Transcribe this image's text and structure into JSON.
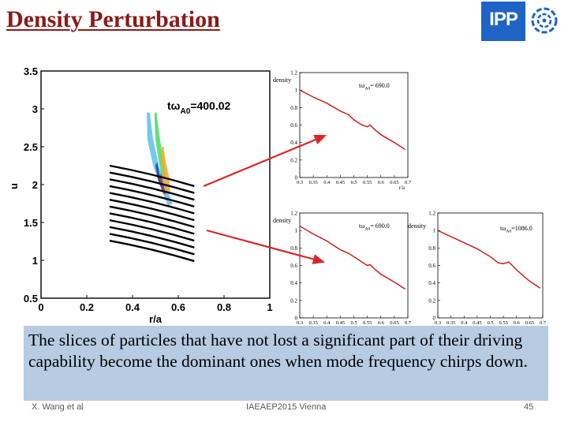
{
  "slide": {
    "title": "Density Perturbation",
    "logo_text": "IPP",
    "caption": "The slices of particles that have not lost a significant part of their driving capability become the dominant ones when mode frequency chirps down.",
    "footer": {
      "author": "X. Wang et al",
      "conference": "IAEAEP2015 Vienna",
      "page": "45"
    },
    "arrow_color": "#d62828"
  },
  "chart_data": [
    {
      "type": "contour",
      "annotation": "tω",
      "annotation_sub": "A0",
      "annotation_value": "=400.02",
      "xlabel": "r/a",
      "ylabel": "u",
      "xlim": [
        0,
        1
      ],
      "ylim": [
        0.5,
        3.5
      ],
      "xticks": [
        "0",
        "0.2",
        "0.4",
        "0.6",
        "0.8",
        "1"
      ],
      "yticks": [
        "0.5",
        "1",
        "1.5",
        "2",
        "2.5",
        "3",
        "3.5"
      ],
      "slices": {
        "count": 12,
        "r_start": 0.3,
        "r_end": 0.67,
        "u_start": [
          2.25,
          2.16,
          2.07,
          1.98,
          1.89,
          1.8,
          1.71,
          1.62,
          1.53,
          1.44,
          1.35,
          1.26
        ],
        "u_end": [
          1.98,
          1.89,
          1.8,
          1.71,
          1.62,
          1.53,
          1.44,
          1.35,
          1.26,
          1.17,
          1.08,
          0.99
        ],
        "color": "#000000"
      },
      "perturbation_blobs": [
        {
          "color": "#5bc0eb",
          "points": [
            [
              0.475,
              2.95
            ],
            [
              0.49,
              2.6
            ],
            [
              0.515,
              2.25
            ],
            [
              0.55,
              1.95
            ],
            [
              0.575,
              1.75
            ],
            [
              0.555,
              1.72
            ],
            [
              0.525,
              1.95
            ],
            [
              0.49,
              2.25
            ],
            [
              0.465,
              2.6
            ],
            [
              0.462,
              2.95
            ]
          ]
        },
        {
          "color": "#4cd964",
          "points": [
            [
              0.505,
              2.95
            ],
            [
              0.52,
              2.6
            ],
            [
              0.535,
              2.3
            ],
            [
              0.545,
              2.1
            ],
            [
              0.53,
              2.08
            ],
            [
              0.515,
              2.3
            ],
            [
              0.5,
              2.6
            ],
            [
              0.495,
              2.95
            ]
          ]
        },
        {
          "color": "#f5a623",
          "points": [
            [
              0.535,
              2.5
            ],
            [
              0.545,
              2.3
            ],
            [
              0.56,
              2.1
            ],
            [
              0.565,
              1.9
            ],
            [
              0.55,
              1.88
            ],
            [
              0.535,
              2.1
            ],
            [
              0.525,
              2.35
            ],
            [
              0.528,
              2.5
            ]
          ]
        },
        {
          "color": "#1a3ba8",
          "points": [
            [
              0.508,
              2.3
            ],
            [
              0.52,
              2.1
            ],
            [
              0.538,
              1.95
            ],
            [
              0.53,
              1.92
            ],
            [
              0.512,
              2.05
            ],
            [
              0.5,
              2.25
            ]
          ]
        },
        {
          "color": "#d62828",
          "points": [
            [
              0.525,
              2.15
            ],
            [
              0.535,
              2.0
            ],
            [
              0.545,
              1.88
            ],
            [
              0.535,
              1.87
            ],
            [
              0.525,
              1.98
            ],
            [
              0.518,
              2.12
            ]
          ]
        }
      ]
    },
    {
      "type": "line",
      "ylabel": "density",
      "xlabel": "r/a",
      "annotation": "tω",
      "annotation_sub": "A0",
      "annotation_value": "= 690.0",
      "xlim": [
        0.3,
        0.7
      ],
      "ylim": [
        0,
        1.2
      ],
      "xticks": [
        "0.3",
        "0.35",
        "0.4",
        "0.45",
        "0.5",
        "0.55",
        "0.6",
        "0.65",
        "0.7"
      ],
      "yticks": [
        "0",
        "0.2",
        "0.4",
        "0.6",
        "0.8",
        "1",
        "1.2"
      ],
      "series": [
        {
          "color": "#cc1f1f",
          "x": [
            0.3,
            0.35,
            0.4,
            0.45,
            0.48,
            0.5,
            0.53,
            0.55,
            0.56,
            0.58,
            0.6,
            0.65,
            0.69
          ],
          "y": [
            1.0,
            0.92,
            0.85,
            0.76,
            0.72,
            0.66,
            0.6,
            0.58,
            0.6,
            0.54,
            0.49,
            0.4,
            0.32
          ]
        }
      ]
    },
    {
      "type": "line",
      "ylabel": "density",
      "xlabel": "",
      "annotation": "tω",
      "annotation_sub": "A0",
      "annotation_value": "= 690.0",
      "xlim": [
        0.3,
        0.7
      ],
      "ylim": [
        0,
        1.2
      ],
      "xticks": [
        "0.3",
        "0.35",
        "0.4",
        "0.45",
        "0.5",
        "0.55",
        "0.6",
        "0.65",
        "0.7"
      ],
      "yticks": [
        "0",
        "0.2",
        "0.4",
        "0.6",
        "0.8",
        "1",
        "1.2"
      ],
      "series": [
        {
          "color": "#cc1f1f",
          "x": [
            0.3,
            0.35,
            0.4,
            0.45,
            0.48,
            0.5,
            0.53,
            0.55,
            0.56,
            0.58,
            0.6,
            0.65,
            0.69
          ],
          "y": [
            1.05,
            0.96,
            0.88,
            0.78,
            0.74,
            0.7,
            0.64,
            0.6,
            0.61,
            0.55,
            0.5,
            0.41,
            0.33
          ]
        }
      ]
    },
    {
      "type": "line",
      "ylabel": "density",
      "xlabel": "",
      "annotation": "tω",
      "annotation_sub": "A0",
      "annotation_value": "=1086.0",
      "xlim": [
        0.3,
        0.7
      ],
      "ylim": [
        0,
        1.2
      ],
      "xticks": [
        "0.3",
        "0.35",
        "0.4",
        "0.45",
        "0.5",
        "0.55",
        "0.6",
        "0.65",
        "0.7"
      ],
      "yticks": [
        "0",
        "0.2",
        "0.4",
        "0.6",
        "0.8",
        "1",
        "1.2"
      ],
      "series": [
        {
          "color": "#cc1f1f",
          "x": [
            0.3,
            0.35,
            0.4,
            0.45,
            0.5,
            0.53,
            0.55,
            0.57,
            0.6,
            0.63,
            0.65,
            0.69
          ],
          "y": [
            1.0,
            0.93,
            0.86,
            0.79,
            0.7,
            0.63,
            0.62,
            0.64,
            0.55,
            0.47,
            0.42,
            0.34
          ]
        }
      ]
    }
  ]
}
